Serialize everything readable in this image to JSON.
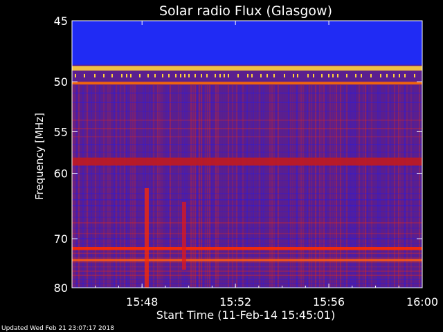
{
  "chart_data": {
    "type": "heatmap",
    "title": "Solar radio Flux (Glasgow)",
    "xlabel": "Start Time (11-Feb-14 15:45:01)",
    "ylabel": "Frequency [MHz]",
    "footer": "Updated Wed Feb 21 23:07:17 2018",
    "x_range_minutes": [
      45.0,
      60.0
    ],
    "x_ticks": [
      {
        "label": "15:48",
        "minute": 48
      },
      {
        "label": "15:52",
        "minute": 52
      },
      {
        "label": "15:56",
        "minute": 56
      },
      {
        "label": "16:00",
        "minute": 60
      }
    ],
    "y_scale": "reciprocal",
    "y_range_mhz": [
      45,
      80
    ],
    "y_ticks": [
      {
        "label": "45",
        "mhz": 45
      },
      {
        "label": "50",
        "mhz": 50
      },
      {
        "label": "55",
        "mhz": 55
      },
      {
        "label": "60",
        "mhz": 60
      },
      {
        "label": "70",
        "mhz": 70
      },
      {
        "label": "80",
        "mhz": 80
      }
    ],
    "grid": false,
    "colors": {
      "background": "#000000",
      "low": "#1a1aff",
      "mid": "#5a1f8f",
      "high": "#ff2a00",
      "peak": "#ffd23a"
    },
    "features": [
      {
        "kind": "band",
        "mhz_from": 45,
        "mhz_to": 48.5,
        "color": "#1a2cff"
      },
      {
        "kind": "band",
        "mhz_from": 48.6,
        "mhz_to": 49.0,
        "color": "#ffd23a"
      },
      {
        "kind": "band",
        "mhz_from": 50.0,
        "mhz_to": 50.25,
        "color": "#ff6a00"
      },
      {
        "kind": "band",
        "mhz_from": 58.0,
        "mhz_to": 59.0,
        "color": "#c01a20"
      },
      {
        "kind": "band",
        "mhz_from": 71.5,
        "mhz_to": 72.1,
        "color": "#ff2a00"
      },
      {
        "kind": "band",
        "mhz_from": 73.8,
        "mhz_to": 74.3,
        "color": "#ff5a10"
      },
      {
        "kind": "burst",
        "minute": 48.2,
        "mhz_from": 62,
        "mhz_to": 80,
        "color": "#ff2a00"
      },
      {
        "kind": "burst",
        "minute": 49.8,
        "mhz_from": 64,
        "mhz_to": 76,
        "color": "#e01818"
      }
    ]
  }
}
